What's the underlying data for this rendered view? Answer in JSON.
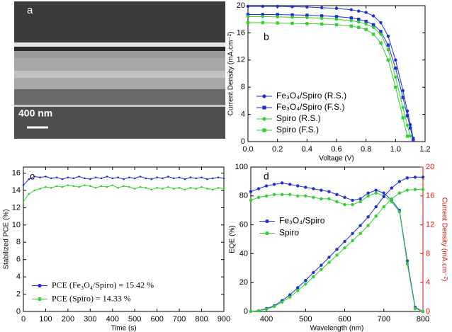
{
  "chart_data": [
    {
      "type": "image",
      "label": "a",
      "scale_bar": "400 nm"
    },
    {
      "type": "line",
      "label": "b",
      "xlabel": "Voltage (V)",
      "ylabel": "Current Density (mA.cm⁻²)",
      "x": [
        0,
        0.1,
        0.2,
        0.3,
        0.4,
        0.5,
        0.6,
        0.7,
        0.75,
        0.8,
        0.85,
        0.9,
        0.95,
        1.0,
        1.05,
        1.08,
        1.1,
        1.12,
        1.14
      ],
      "xlim": [
        0,
        1.2
      ],
      "xticks": [
        {
          "value": 0,
          "label": "0.0"
        },
        {
          "value": 0.2,
          "label": "0.2"
        },
        {
          "value": 0.4,
          "label": "0.4"
        },
        {
          "value": 0.6,
          "label": "0.6"
        },
        {
          "value": 0.8,
          "label": "0.8"
        },
        {
          "value": 1.0,
          "label": "1.0"
        },
        {
          "value": 1.2,
          "label": "1.2"
        }
      ],
      "ylim": [
        0,
        20
      ],
      "yticks": [
        0,
        4,
        8,
        12,
        16,
        20
      ],
      "legend": "lower left",
      "series": [
        {
          "name": "Fe₃O₄/Spiro (R.S.)",
          "color": "#1f2fd6",
          "marker": "circle",
          "values": [
            19.9,
            19.9,
            19.9,
            19.85,
            19.8,
            19.7,
            19.6,
            19.4,
            19.2,
            19.0,
            18.5,
            17.5,
            15.5,
            12,
            7.5,
            4.5,
            2.5,
            0.5,
            null
          ]
        },
        {
          "name": "Fe₃O₄/Spiro (F.S.)",
          "color": "#1f2fd6",
          "marker": "square",
          "values": [
            18.7,
            18.7,
            18.7,
            18.65,
            18.6,
            18.5,
            18.4,
            18.2,
            18.0,
            17.7,
            17.2,
            16.2,
            14.2,
            10.8,
            6.5,
            3.8,
            2.0,
            0.2,
            null
          ]
        },
        {
          "name": "Spiro (R.S.)",
          "color": "#2fd12f",
          "marker": "circle",
          "values": [
            18.4,
            18.4,
            18.35,
            18.3,
            18.25,
            18.15,
            18.0,
            17.8,
            17.6,
            17.3,
            16.8,
            15.8,
            13.5,
            9.5,
            5.0,
            2.4,
            0.8,
            null,
            null
          ]
        },
        {
          "name": "Spiro (F.S.)",
          "color": "#2fd12f",
          "marker": "square",
          "values": [
            17.5,
            17.5,
            17.45,
            17.4,
            17.35,
            17.3,
            17.2,
            17.0,
            16.8,
            16.5,
            15.8,
            14.5,
            12.0,
            8.0,
            3.5,
            0.8,
            null,
            null,
            null
          ]
        }
      ]
    },
    {
      "type": "line",
      "label": "c",
      "xlabel": "Time (s)",
      "ylabel": "Stabilized PCE (%)",
      "x": [
        0,
        25,
        50,
        75,
        100,
        125,
        150,
        175,
        200,
        225,
        250,
        275,
        300,
        325,
        350,
        375,
        400,
        425,
        450,
        475,
        500,
        525,
        550,
        575,
        600,
        625,
        650,
        675,
        700,
        725,
        750,
        775,
        800,
        825,
        850,
        875,
        900
      ],
      "xlim": [
        0,
        900
      ],
      "xticks": [
        0,
        100,
        200,
        300,
        400,
        500,
        600,
        700,
        800,
        900
      ],
      "ylim": [
        0,
        16.7
      ],
      "yticks": [
        0,
        2,
        4,
        6,
        8,
        10,
        12,
        14,
        16
      ],
      "legend": "lower left",
      "series": [
        {
          "name": "PCE (Fe₃O₄/Spiro) = 15.42 %",
          "color": "#1f2fd6",
          "marker": "circle",
          "values": [
            14.6,
            15.3,
            15.6,
            15.5,
            15.6,
            15.4,
            15.5,
            15.3,
            15.5,
            15.4,
            15.6,
            15.4,
            15.3,
            15.5,
            15.4,
            15.6,
            15.4,
            15.5,
            15.3,
            15.5,
            15.4,
            15.6,
            15.4,
            15.3,
            15.5,
            15.4,
            15.6,
            15.4,
            15.5,
            15.3,
            15.5,
            15.4,
            15.5,
            15.3,
            15.4,
            15.5,
            15.4
          ]
        },
        {
          "name": "PCE (Spiro)         = 14.33 %",
          "color": "#2fd12f",
          "marker": "circle",
          "values": [
            12.7,
            13.6,
            14.0,
            14.2,
            14.4,
            14.3,
            14.5,
            14.4,
            14.6,
            14.5,
            14.4,
            14.6,
            14.5,
            14.3,
            14.5,
            14.4,
            14.6,
            14.3,
            14.5,
            14.4,
            14.2,
            14.4,
            14.3,
            14.1,
            14.3,
            14.2,
            14.4,
            14.2,
            14.3,
            14.1,
            14.3,
            14.2,
            14.4,
            14.2,
            14.1,
            14.3,
            14.2
          ]
        }
      ]
    },
    {
      "type": "line",
      "label": "d",
      "xlabel": "Wavelength (nm)",
      "ylabel": "EQE (%)",
      "y2label": "Current Density (mA.cm⁻²)",
      "y2_color": "#e01010",
      "x": [
        360,
        380,
        400,
        420,
        440,
        460,
        480,
        500,
        520,
        540,
        560,
        580,
        600,
        620,
        640,
        660,
        680,
        700,
        720,
        740,
        760,
        780,
        800
      ],
      "xlim": [
        360,
        800
      ],
      "xticks": [
        400,
        500,
        600,
        700,
        800
      ],
      "ylim": [
        0,
        100
      ],
      "yticks": [
        0,
        20,
        40,
        60,
        80,
        100
      ],
      "y2lim": [
        0,
        20
      ],
      "y2ticks": [
        0,
        4,
        8,
        12,
        16,
        20
      ],
      "legend": "center left",
      "series": [
        {
          "name": "Fe₃O₄/Spiro",
          "color": "#1f2fd6",
          "marker": "circle",
          "values": [
            83,
            85,
            87,
            88,
            89,
            88,
            87,
            86,
            85,
            84,
            83,
            81,
            79,
            77,
            78,
            82,
            84,
            82,
            77,
            70,
            35,
            3,
            0
          ]
        },
        {
          "name": "Spiro",
          "color": "#2fd12f",
          "marker": "circle",
          "values": [
            77,
            79,
            80,
            81,
            81,
            81,
            80,
            80,
            79,
            78,
            78,
            76,
            74,
            74,
            76,
            80,
            82,
            80,
            76,
            69,
            33,
            2,
            0
          ]
        },
        {
          "color": "#1f2fd6",
          "marker": "circle",
          "axis": "y2",
          "values": [
            0,
            0.1,
            0.4,
            0.8,
            1.5,
            2.3,
            3.3,
            4.3,
            5.4,
            6.4,
            7.5,
            8.6,
            9.7,
            10.8,
            11.9,
            13.1,
            14.5,
            15.9,
            17.1,
            18.0,
            18.5,
            18.6,
            18.6
          ]
        },
        {
          "color": "#2fd12f",
          "marker": "circle",
          "axis": "y2",
          "values": [
            0,
            0.1,
            0.3,
            0.7,
            1.3,
            2.0,
            2.9,
            3.8,
            4.8,
            5.8,
            6.8,
            7.8,
            8.8,
            9.8,
            10.8,
            11.9,
            13.2,
            14.5,
            15.6,
            16.4,
            16.8,
            16.9,
            16.9
          ]
        }
      ]
    }
  ]
}
